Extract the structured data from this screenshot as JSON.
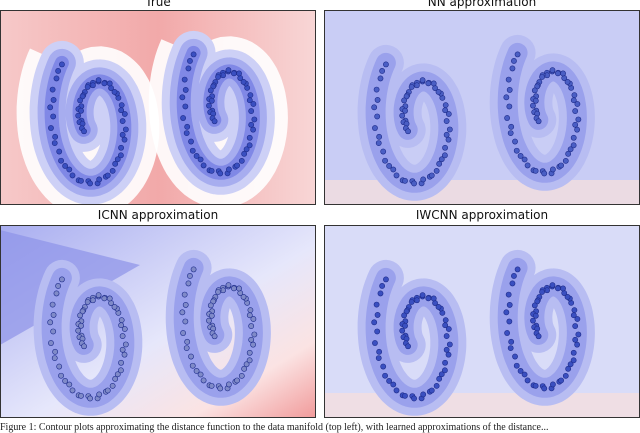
{
  "figure": {
    "panels": [
      {
        "title": "True"
      },
      {
        "title": "NN approximation"
      },
      {
        "title": "ICNN approximation"
      },
      {
        "title": "IWCNN approximation"
      }
    ],
    "caption": "Figure 1: Contour plots approximating the distance function to the data manifold (top left), with learned approximations of the distance..."
  }
}
